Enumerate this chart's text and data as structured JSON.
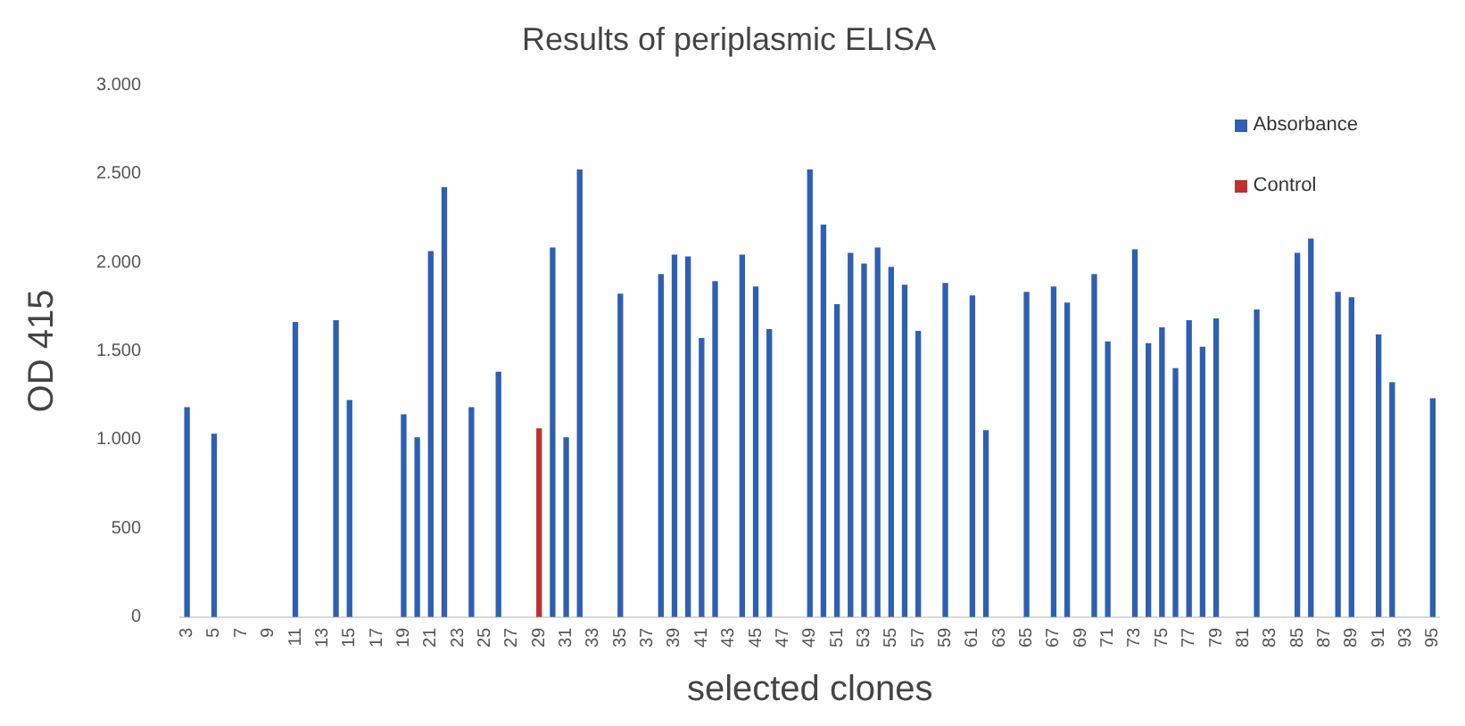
{
  "chart_data": {
    "type": "bar",
    "title": "Results of periplasmic ELISA",
    "xlabel": "selected clones",
    "ylabel": "OD 415",
    "categories": [
      "3",
      null,
      "5",
      null,
      "7",
      null,
      "9",
      null,
      "11",
      null,
      "13",
      null,
      "15",
      null,
      "17",
      null,
      "19",
      null,
      "21",
      null,
      "23",
      null,
      "25",
      null,
      "27",
      null,
      "29",
      null,
      "31",
      null,
      "33",
      null,
      "35",
      null,
      "37",
      null,
      "39",
      null,
      "41",
      null,
      "43",
      null,
      "45",
      null,
      "47",
      null,
      "49",
      null,
      "51",
      null,
      "53",
      null,
      "55",
      null,
      "57",
      null,
      "59",
      null,
      "61",
      null,
      "63",
      null,
      "65",
      null,
      "67",
      null,
      "69",
      null,
      "71",
      null,
      "73",
      null,
      "75",
      null,
      "77",
      null,
      "79",
      null,
      "81",
      null,
      "83",
      null,
      "85",
      null,
      "87",
      null,
      "89",
      null,
      "91",
      null,
      "93",
      null,
      "95"
    ],
    "series": [
      {
        "name": "Absorbance",
        "color": "#2f5fb3",
        "values": [
          1180,
          null,
          1030,
          null,
          null,
          null,
          null,
          null,
          1660,
          null,
          null,
          1670,
          1220,
          null,
          null,
          null,
          1140,
          1010,
          2060,
          2420,
          null,
          1180,
          null,
          1380,
          null,
          null,
          null,
          2080,
          1010,
          2520,
          null,
          null,
          1820,
          null,
          null,
          1930,
          2040,
          2030,
          1570,
          1890,
          null,
          2040,
          1860,
          1620,
          null,
          null,
          2520,
          2210,
          1760,
          2050,
          1990,
          2080,
          1970,
          1870,
          1610,
          null,
          1880,
          null,
          1810,
          1050,
          null,
          null,
          1830,
          null,
          1860,
          1770,
          null,
          1930,
          1550,
          null,
          2070,
          1540,
          1630,
          1400,
          1670,
          1520,
          1680,
          null,
          null,
          1730,
          null,
          null,
          2050,
          2130,
          null,
          1830,
          1800,
          null,
          1590,
          1320,
          null,
          null,
          1230
        ]
      },
      {
        "name": "Control",
        "color": "#c0302f",
        "values": [
          null,
          null,
          null,
          null,
          null,
          null,
          null,
          null,
          null,
          null,
          null,
          null,
          null,
          null,
          null,
          null,
          null,
          null,
          null,
          null,
          null,
          null,
          null,
          null,
          null,
          null,
          1060,
          null,
          null,
          null,
          null,
          null,
          null,
          null,
          null,
          null,
          null,
          null,
          null,
          null,
          null,
          null,
          null,
          null,
          null,
          null,
          null,
          null,
          null,
          null,
          null,
          null,
          null,
          null,
          null,
          null,
          null,
          null,
          null,
          null,
          null,
          null,
          null,
          null,
          null,
          null,
          null,
          null,
          null,
          null,
          null,
          null,
          null,
          null,
          null,
          null,
          null,
          null,
          null,
          null,
          null,
          null,
          null,
          null,
          null,
          null,
          null,
          null,
          null,
          null,
          null,
          null,
          null
        ]
      }
    ],
    "ylim": [
      0,
      3000
    ],
    "yticks": [
      0,
      500,
      {
        "value": 1000,
        "label": "1.000"
      },
      {
        "value": 1500,
        "label": "1.500"
      },
      {
        "value": 2000,
        "label": "2.000"
      },
      {
        "value": 2500,
        "label": "2.500"
      },
      {
        "value": 3000,
        "label": "3.000"
      }
    ],
    "grid": false,
    "legend": "top right"
  }
}
